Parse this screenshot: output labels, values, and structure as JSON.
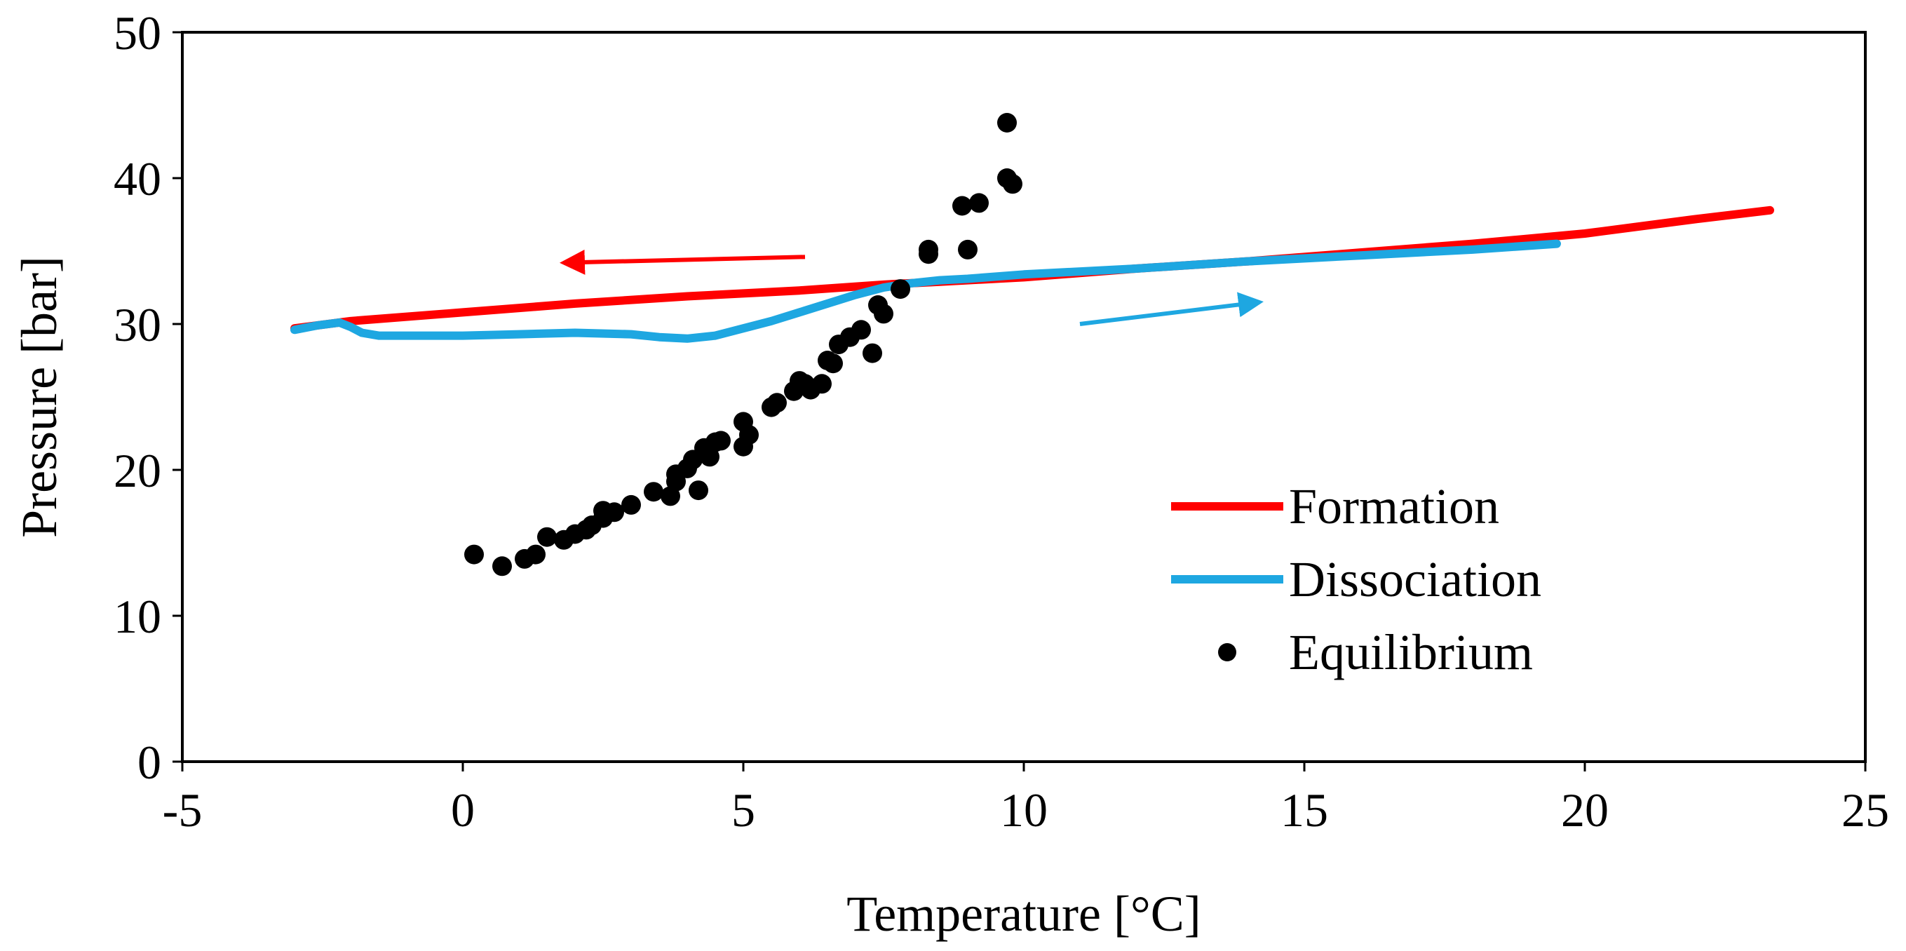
{
  "chart_data": {
    "type": "scatter",
    "title": "",
    "xlabel": "Temperature [°C]",
    "ylabel": "Pressure [bar]",
    "xlim": [
      -5,
      25
    ],
    "ylim": [
      0,
      50
    ],
    "x_ticks": [
      -5,
      0,
      5,
      10,
      15,
      20,
      25
    ],
    "y_ticks": [
      0,
      10,
      20,
      30,
      40,
      50
    ],
    "x_tick_labels": [
      "-5",
      "0",
      "5",
      "10",
      "15",
      "20",
      "25"
    ],
    "y_tick_labels": [
      "0",
      "10",
      "20",
      "30",
      "40",
      "50"
    ],
    "grid": false,
    "legend_position": "lower-right",
    "series": [
      {
        "name": "Formation",
        "kind": "line",
        "color": "#ff0000",
        "x": [
          -3.0,
          -2.0,
          0.0,
          2.0,
          4.0,
          6.0,
          7.5,
          8.5,
          10.0,
          12.0,
          14.0,
          16.0,
          18.0,
          20.0,
          22.0,
          23.3
        ],
        "y": [
          29.7,
          30.2,
          30.8,
          31.4,
          31.9,
          32.3,
          32.7,
          32.9,
          33.2,
          33.8,
          34.3,
          34.9,
          35.5,
          36.2,
          37.2,
          37.8
        ]
      },
      {
        "name": "Dissociation",
        "kind": "line",
        "color": "#1ea7e1",
        "x": [
          -3.0,
          -2.6,
          -2.2,
          -2.0,
          -1.8,
          -1.5,
          -1.0,
          0.0,
          1.0,
          2.0,
          3.0,
          3.5,
          4.0,
          4.5,
          5.0,
          5.5,
          6.0,
          6.5,
          7.0,
          7.5,
          8.0,
          8.5,
          9.0,
          10.0,
          12.0,
          14.0,
          16.0,
          18.0,
          19.5
        ],
        "y": [
          29.6,
          29.9,
          30.1,
          29.8,
          29.4,
          29.2,
          29.2,
          29.2,
          29.3,
          29.4,
          29.3,
          29.1,
          29.0,
          29.2,
          29.7,
          30.2,
          30.8,
          31.4,
          32.0,
          32.5,
          32.8,
          33.0,
          33.1,
          33.4,
          33.8,
          34.3,
          34.7,
          35.1,
          35.5
        ]
      },
      {
        "name": "Equilibrium",
        "kind": "scatter",
        "color": "#000000",
        "x": [
          0.2,
          0.7,
          1.1,
          1.3,
          1.5,
          1.8,
          2.0,
          2.2,
          2.3,
          2.5,
          2.5,
          2.7,
          3.0,
          3.4,
          3.7,
          3.8,
          3.8,
          4.0,
          4.1,
          4.2,
          4.3,
          4.4,
          4.5,
          4.6,
          5.0,
          5.0,
          5.1,
          5.5,
          5.6,
          5.9,
          6.0,
          6.1,
          6.2,
          6.4,
          6.5,
          6.6,
          6.7,
          6.9,
          7.1,
          7.3,
          7.4,
          7.5,
          7.8,
          8.3,
          8.3,
          8.9,
          9.0,
          9.2,
          9.7,
          9.7,
          9.8
        ],
        "y": [
          14.2,
          13.4,
          13.9,
          14.2,
          15.4,
          15.2,
          15.6,
          15.9,
          16.2,
          16.7,
          17.2,
          17.1,
          17.6,
          18.5,
          18.2,
          19.2,
          19.7,
          20.1,
          20.7,
          18.6,
          21.5,
          20.9,
          21.9,
          22.0,
          21.6,
          23.3,
          22.4,
          24.3,
          24.6,
          25.4,
          26.1,
          25.9,
          25.5,
          25.9,
          27.5,
          27.3,
          28.6,
          29.1,
          29.6,
          28.0,
          31.3,
          30.7,
          32.4,
          34.8,
          35.1,
          38.1,
          35.1,
          38.3,
          43.8,
          40.0,
          39.6
        ]
      }
    ],
    "annotations": [
      {
        "type": "arrow",
        "color": "#ff0000",
        "meaning": "formation direction (cooling)",
        "from": [
          6.1,
          34.6
        ],
        "to": [
          1.8,
          34.2
        ]
      },
      {
        "type": "arrow",
        "color": "#1ea7e1",
        "meaning": "dissociation direction (heating)",
        "from": [
          11.0,
          30.0
        ],
        "to": [
          14.2,
          31.5
        ]
      }
    ]
  }
}
